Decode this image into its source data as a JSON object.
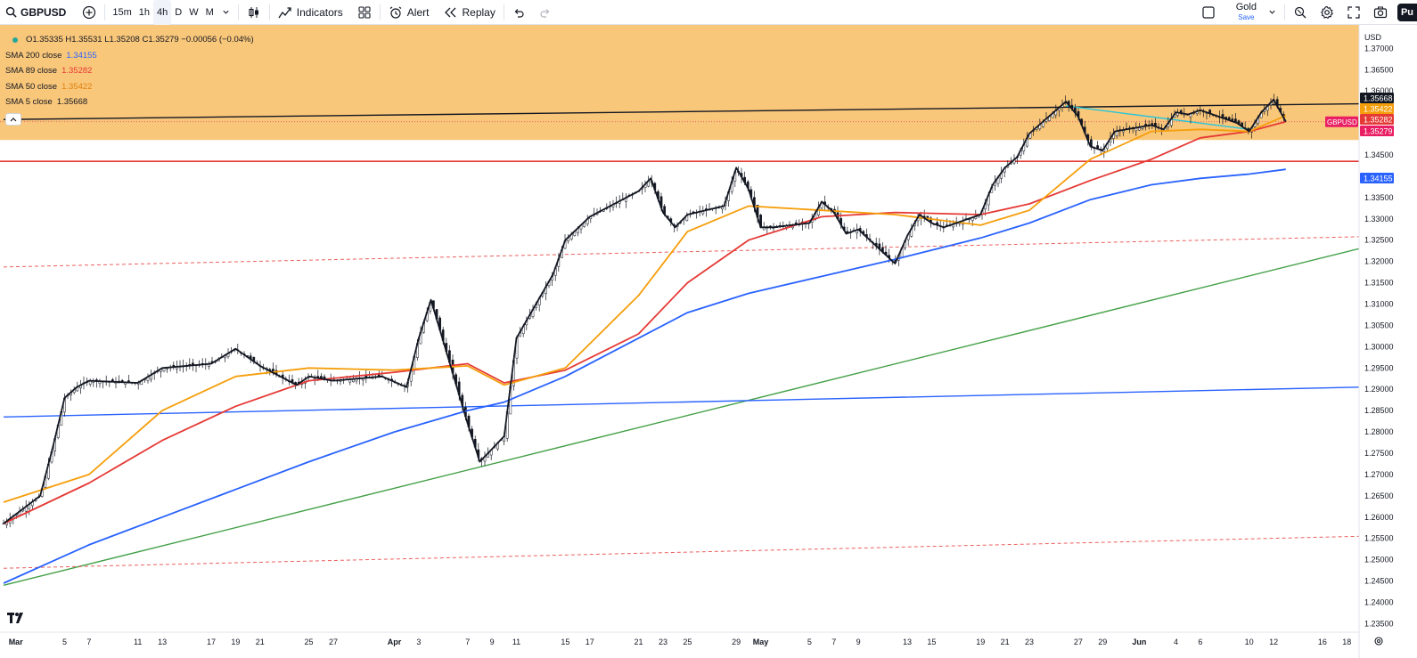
{
  "toolbar": {
    "symbol": "GBPUSD",
    "intervals": [
      "15m",
      "1h",
      "4h",
      "D",
      "W",
      "M"
    ],
    "active_interval": "4h",
    "indicators_label": "Indicators",
    "alert_label": "Alert",
    "replay_label": "Replay",
    "layout_name": "Gold",
    "save_label": "Save",
    "publish_label": "Pu"
  },
  "legend": {
    "ohlc": "O1.35335 H1.35531 L1.35208 C1.35279 −0.00056 (−0.04%)",
    "indicators": [
      {
        "label": "SMA 200 close",
        "value": "1.34155",
        "color": "#2962ff"
      },
      {
        "label": "SMA 89 close",
        "value": "1.35282",
        "color": "#e53935"
      },
      {
        "label": "SMA 50 close",
        "value": "1.35422",
        "color": "#f59e0b"
      },
      {
        "label": "SMA 5 close",
        "value": "1.35668",
        "color": "#131722"
      }
    ]
  },
  "price_axis": {
    "currency": "USD",
    "ticks": [
      "1.37000",
      "1.36500",
      "1.36000",
      "1.35500",
      "1.35000",
      "1.34500",
      "1.34000",
      "1.33500",
      "1.33000",
      "1.32500",
      "1.32000",
      "1.31500",
      "1.31000",
      "1.30500",
      "1.30000",
      "1.29500",
      "1.29000",
      "1.28500",
      "1.28000",
      "1.27500",
      "1.27000",
      "1.26500",
      "1.26000",
      "1.25500",
      "1.25000",
      "1.24500",
      "1.24000",
      "1.23500"
    ],
    "tick_values": [
      1.37,
      1.365,
      1.36,
      1.355,
      1.35,
      1.345,
      1.34,
      1.335,
      1.33,
      1.325,
      1.32,
      1.315,
      1.31,
      1.305,
      1.3,
      1.295,
      1.29,
      1.285,
      1.28,
      1.275,
      1.27,
      1.265,
      1.26,
      1.255,
      1.25,
      1.245,
      1.24,
      1.235
    ],
    "labels": [
      {
        "text": "1.35668",
        "value": 1.35668,
        "bg": "#131722",
        "fg": "#ffffff"
      },
      {
        "text": "1.35422",
        "value": 1.35422,
        "bg": "#f59e0b",
        "fg": "#ffffff"
      },
      {
        "text": "1.35282",
        "value": 1.35282,
        "bg": "#e53935",
        "fg": "#ffffff"
      },
      {
        "text": "1.35279",
        "value": 1.35279,
        "bg": "#e91e63",
        "fg": "#ffffff"
      },
      {
        "text": "1.34155",
        "value": 1.34155,
        "bg": "#2962ff",
        "fg": "#ffffff"
      }
    ],
    "symbol_tag": "GBPUSD"
  },
  "time_axis": {
    "labels": [
      "Mar",
      "5",
      "7",
      "11",
      "13",
      "17",
      "19",
      "21",
      "25",
      "27",
      "Apr",
      "3",
      "7",
      "9",
      "11",
      "15",
      "17",
      "21",
      "23",
      "25",
      "29",
      "May",
      "5",
      "7",
      "9",
      "13",
      "15",
      "19",
      "21",
      "23",
      "27",
      "29",
      "Jun",
      "4",
      "6",
      "10",
      "12",
      "16",
      "18"
    ],
    "bold": [
      "Mar",
      "Apr",
      "May",
      "Jun"
    ]
  },
  "zones": {
    "resistance_zone": {
      "from": 1.3485,
      "to": 1.3755,
      "color": "#f9c77a"
    },
    "support_line": {
      "value": 1.3435,
      "color": "#e53935"
    }
  },
  "chart_data": {
    "type": "line",
    "title": "",
    "symbol": "GBPUSD",
    "timeframe": "4h",
    "ylim": [
      1.233,
      1.3755
    ],
    "series": [
      {
        "name": "GBPUSD",
        "color": "#131722",
        "x": [
          "Feb 28",
          "Mar 3",
          "Mar 4",
          "Mar 5",
          "Mar 6",
          "Mar 7",
          "Mar 11",
          "Mar 13",
          "Mar 17",
          "Mar 19",
          "Mar 20",
          "Mar 21",
          "Mar 24",
          "Mar 25",
          "Mar 27",
          "Mar 31",
          "Apr 2",
          "Apr 3",
          "Apr 4",
          "Apr 7",
          "Apr 8",
          "Apr 9",
          "Apr 10",
          "Apr 11",
          "Apr 14",
          "Apr 15",
          "Apr 17",
          "Apr 21",
          "Apr 22",
          "Apr 23",
          "Apr 24",
          "Apr 25",
          "Apr 28",
          "Apr 29",
          "Apr 30",
          "May 1",
          "May 2",
          "May 5",
          "May 6",
          "May 7",
          "May 8",
          "May 9",
          "May 12",
          "May 13",
          "May 14",
          "May 15",
          "May 16",
          "May 19",
          "May 20",
          "May 21",
          "May 22",
          "May 23",
          "May 26",
          "May 27",
          "May 28",
          "May 29",
          "May 30",
          "Jun 2",
          "Jun 3",
          "Jun 4",
          "Jun 5",
          "Jun 6",
          "Jun 9",
          "Jun 10",
          "Jun 11",
          "Jun 12",
          "Jun 13"
        ],
        "values": [
          1.2585,
          1.265,
          1.276,
          1.288,
          1.2905,
          1.292,
          1.2915,
          1.295,
          1.296,
          1.2995,
          1.2975,
          1.2955,
          1.291,
          1.293,
          1.292,
          1.293,
          1.2905,
          1.302,
          1.311,
          1.282,
          1.273,
          1.276,
          1.279,
          1.302,
          1.317,
          1.325,
          1.3305,
          1.3365,
          1.3395,
          1.3315,
          1.328,
          1.331,
          1.333,
          1.342,
          1.337,
          1.328,
          1.328,
          1.329,
          1.334,
          1.3315,
          1.3265,
          1.3275,
          1.3195,
          1.326,
          1.331,
          1.329,
          1.328,
          1.331,
          1.338,
          1.342,
          1.3445,
          1.35,
          1.3575,
          1.354,
          1.347,
          1.346,
          1.3505,
          1.352,
          1.351,
          1.355,
          1.3545,
          1.3555,
          1.3525,
          1.3505,
          1.355,
          1.358,
          1.3528
        ]
      },
      {
        "name": "SMA 50 close",
        "color": "#f59e0b",
        "x": [
          "Feb 28",
          "Mar 7",
          "Mar 13",
          "Mar 19",
          "Mar 25",
          "Apr 1",
          "Apr 7",
          "Apr 10",
          "Apr 15",
          "Apr 21",
          "Apr 25",
          "Apr 30",
          "May 6",
          "May 12",
          "May 19",
          "May 23",
          "May 28",
          "Jun 2",
          "Jun 6",
          "Jun 10",
          "Jun 13"
        ],
        "values": [
          1.2635,
          1.27,
          1.285,
          1.293,
          1.295,
          1.2945,
          1.2955,
          1.291,
          1.295,
          1.312,
          1.327,
          1.333,
          1.332,
          1.331,
          1.3285,
          1.332,
          1.344,
          1.3505,
          1.351,
          1.3505,
          1.3542
        ]
      },
      {
        "name": "SMA 89 close",
        "color": "#e53935",
        "x": [
          "Feb 28",
          "Mar 7",
          "Mar 13",
          "Mar 19",
          "Mar 25",
          "Apr 1",
          "Apr 7",
          "Apr 10",
          "Apr 15",
          "Apr 21",
          "Apr 25",
          "Apr 30",
          "May 6",
          "May 12",
          "May 19",
          "May 23",
          "May 28",
          "Jun 2",
          "Jun 6",
          "Jun 10",
          "Jun 13"
        ],
        "values": [
          1.2585,
          1.268,
          1.278,
          1.286,
          1.292,
          1.294,
          1.296,
          1.2915,
          1.2945,
          1.303,
          1.315,
          1.325,
          1.3305,
          1.3315,
          1.331,
          1.3335,
          1.339,
          1.344,
          1.349,
          1.3505,
          1.3528
        ]
      },
      {
        "name": "SMA 200 close",
        "color": "#2962ff",
        "x": [
          "Feb 28",
          "Mar 7",
          "Mar 13",
          "Mar 19",
          "Mar 25",
          "Apr 1",
          "Apr 7",
          "Apr 10",
          "Apr 15",
          "Apr 21",
          "Apr 25",
          "Apr 30",
          "May 6",
          "May 12",
          "May 19",
          "May 23",
          "May 28",
          "Jun 2",
          "Jun 6",
          "Jun 10",
          "Jun 13"
        ],
        "values": [
          1.2445,
          1.2535,
          1.26,
          1.2665,
          1.273,
          1.28,
          1.285,
          1.287,
          1.293,
          1.302,
          1.308,
          1.3125,
          1.3165,
          1.3205,
          1.3255,
          1.329,
          1.3345,
          1.338,
          1.3395,
          1.3405,
          1.3416
        ]
      }
    ],
    "trendlines": [
      {
        "name": "upper-resistance-trendline",
        "color": "#131722",
        "style": "solid",
        "from": [
          "Feb 28",
          1.3533
        ],
        "to": [
          "Jun 19",
          1.357
        ]
      },
      {
        "name": "green-uptrend-line",
        "color": "#43a047",
        "style": "solid",
        "from": [
          "Feb 28",
          1.244
        ],
        "to": [
          "Jun 19",
          1.323
        ]
      },
      {
        "name": "blue-flat-trendline",
        "color": "#2962ff",
        "style": "solid",
        "from": [
          "Feb 28",
          1.2835
        ],
        "to": [
          "Jun 19",
          1.2905
        ]
      },
      {
        "name": "red-dashed-upper-channel",
        "color": "#e53935",
        "style": "dashed",
        "from": [
          "Feb 28",
          1.3187
        ],
        "to": [
          "Jun 19",
          1.3258
        ]
      },
      {
        "name": "red-dashed-lower-channel",
        "color": "#e53935",
        "style": "dashed",
        "from": [
          "Feb 28",
          1.248
        ],
        "to": [
          "Jun 19",
          1.2555
        ]
      },
      {
        "name": "teal-short-trendline",
        "color": "#26c6da",
        "style": "solid",
        "from": [
          "May 26",
          1.3565
        ],
        "to": [
          "Jun 10",
          1.351
        ]
      }
    ]
  }
}
